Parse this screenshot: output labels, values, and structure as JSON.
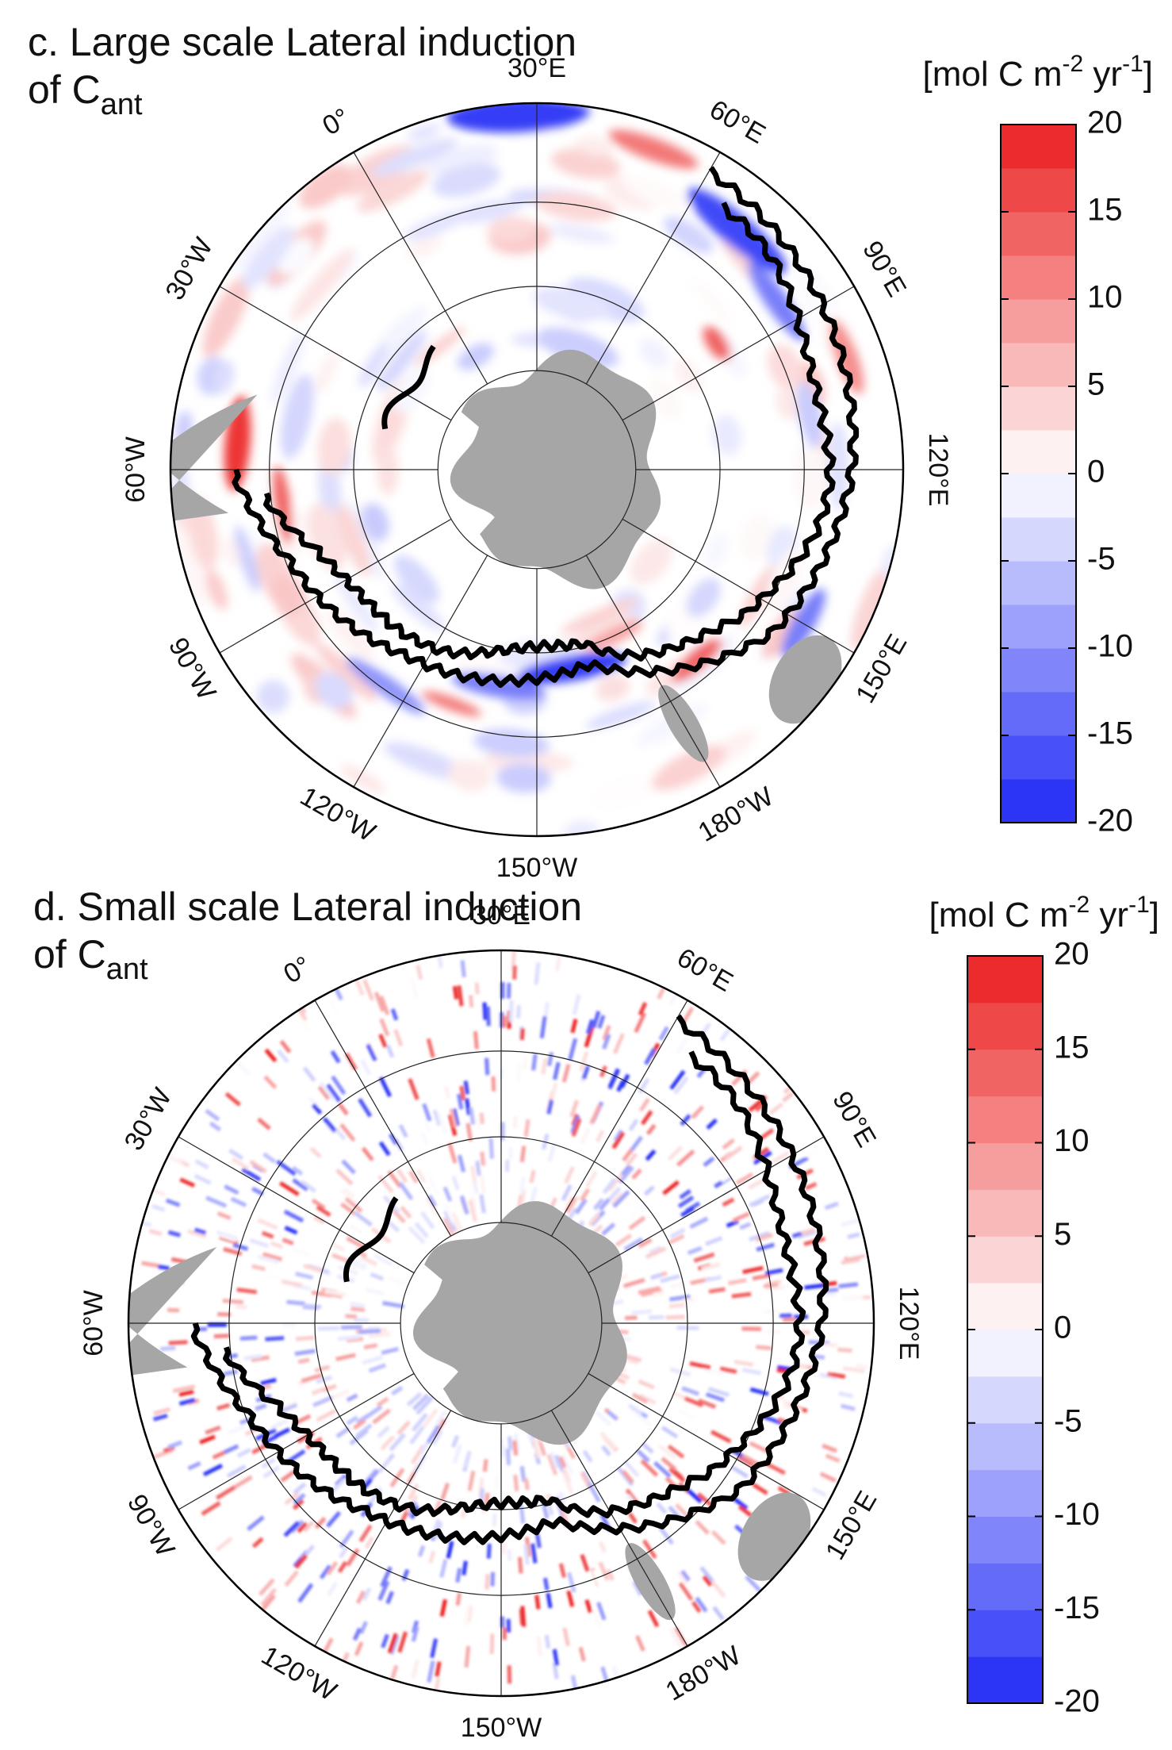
{
  "panels": [
    {
      "title": "c. Large scale Lateral induction",
      "subtitle": "of C",
      "subtitle_sub": "ant",
      "units": [
        "[mol C m",
        "-2",
        " yr",
        "-1",
        "]"
      ],
      "lon_labels": [
        "30°E",
        "60°E",
        "90°E",
        "120°E",
        "150°E",
        "180°W",
        "150°W",
        "120°W",
        "90°W",
        "60°W",
        "30°W",
        "0°"
      ],
      "colorbar": {
        "lim": [
          -20,
          20
        ],
        "ticks": [
          20,
          15,
          10,
          5,
          0,
          -5,
          -10,
          -15,
          -20
        ]
      }
    },
    {
      "title": "d. Small scale Lateral induction",
      "subtitle": "of C",
      "subtitle_sub": "ant",
      "units": [
        "[mol C m",
        "-2",
        " yr",
        "-1",
        "]"
      ],
      "lon_labels": [
        "30°E",
        "60°E",
        "90°E",
        "120°E",
        "150°E",
        "180°W",
        "150°W",
        "120°W",
        "90°W",
        "60°W",
        "30°W",
        "0°"
      ],
      "colorbar": {
        "lim": [
          -20,
          20
        ],
        "ticks": [
          20,
          15,
          10,
          5,
          0,
          -5,
          -10,
          -15,
          -20
        ]
      }
    }
  ]
}
